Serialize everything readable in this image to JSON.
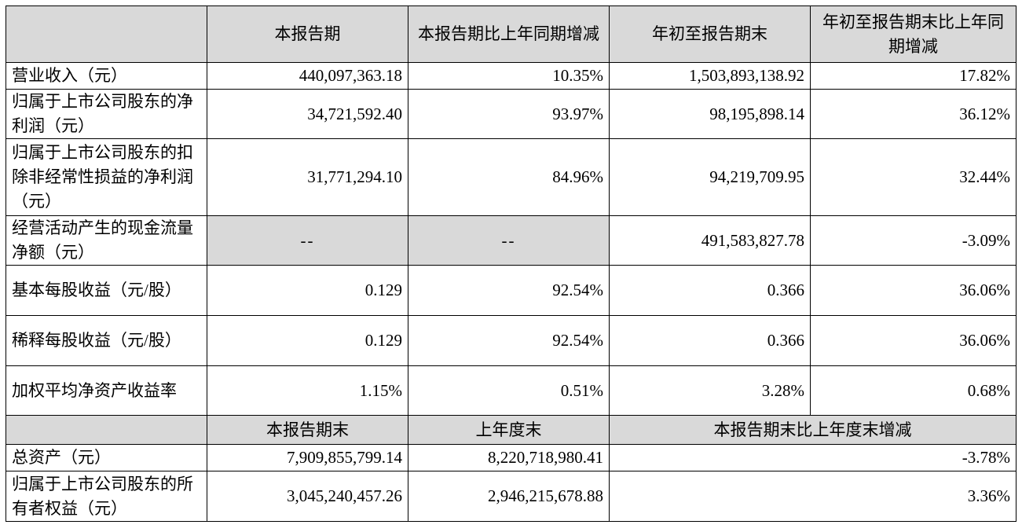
{
  "header": {
    "corner": "",
    "col1": "本报告期",
    "col2": "本报告期比上年同期增减",
    "col3": "年初至报告期末",
    "col4": "年初至报告期末比上年同期增减"
  },
  "rows": [
    {
      "label": "营业收入（元）",
      "v1": "440,097,363.18",
      "v2": "10.35%",
      "v3": "1,503,893,138.92",
      "v4": "17.82%"
    },
    {
      "label": "归属于上市公司股东的净利润（元）",
      "v1": "34,721,592.40",
      "v2": "93.97%",
      "v3": "98,195,898.14",
      "v4": "36.12%"
    },
    {
      "label": "归属于上市公司股东的扣除非经常性损益的净利润（元）",
      "v1": "31,771,294.10",
      "v2": "84.96%",
      "v3": "94,219,709.95",
      "v4": "32.44%"
    },
    {
      "label": "经营活动产生的现金流量净额（元）",
      "v1": "--",
      "v2": "--",
      "v3": "491,583,827.78",
      "v4": "-3.09%"
    },
    {
      "label": "基本每股收益（元/股）",
      "v1": "0.129",
      "v2": "92.54%",
      "v3": "0.366",
      "v4": "36.06%"
    },
    {
      "label": "稀释每股收益（元/股）",
      "v1": "0.129",
      "v2": "92.54%",
      "v3": "0.366",
      "v4": "36.06%"
    },
    {
      "label": "加权平均净资产收益率",
      "v1": "1.15%",
      "v2": "0.51%",
      "v3": "3.28%",
      "v4": "0.68%"
    }
  ],
  "header2": {
    "corner": "",
    "col1": "本报告期末",
    "col2": "上年度末",
    "col3": "本报告期末比上年度末增减"
  },
  "rows2": [
    {
      "label": "总资产（元）",
      "v1": "7,909,855,799.14",
      "v2": "8,220,718,980.41",
      "v3": "-3.78%"
    },
    {
      "label": "归属于上市公司股东的所有者权益（元）",
      "v1": "3,045,240,457.26",
      "v2": "2,946,215,678.88",
      "v3": "3.36%"
    }
  ]
}
